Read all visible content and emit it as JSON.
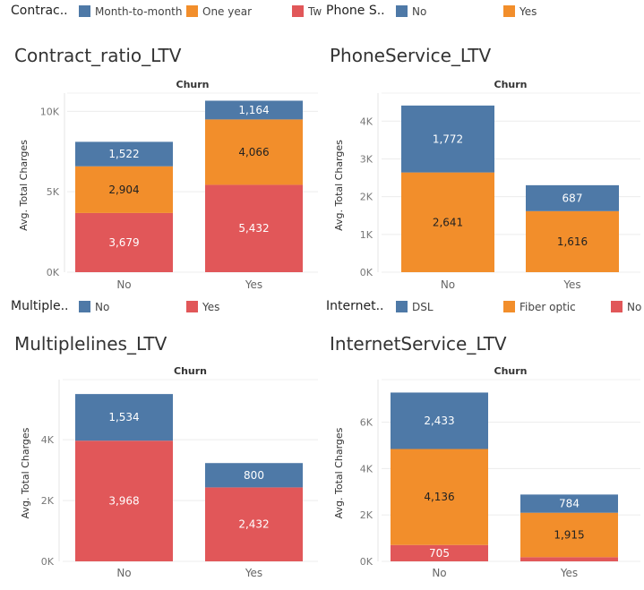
{
  "colors": {
    "blue": "#4e79a7",
    "orange": "#f28e2b",
    "red": "#e15759"
  },
  "panels": [
    {
      "legend": {
        "title": "Contrac..",
        "items": [
          "Month-to-month",
          "One year",
          "Tw"
        ]
      },
      "title": "Contract_ratio_LTV",
      "header": "Churn"
    },
    {
      "legend": {
        "title": "Phone S..",
        "items": [
          "No",
          "Yes"
        ]
      },
      "title": "PhoneService_LTV",
      "header": "Churn"
    },
    {
      "legend": {
        "title": "Multiple..",
        "items": [
          "No",
          "Yes"
        ]
      },
      "title": "Multiplelines_LTV",
      "header": "Churn"
    },
    {
      "legend": {
        "title": "Internet..",
        "items": [
          "DSL",
          "Fiber optic",
          "No"
        ]
      },
      "title": "InternetService_LTV",
      "header": "Churn"
    }
  ],
  "chart_data": [
    {
      "type": "bar",
      "stacked": true,
      "title": "Contract_ratio_LTV",
      "column_header": "Churn",
      "categories": [
        "No",
        "Yes"
      ],
      "ylabel": "Avg. Total Charges",
      "yticks": [
        "0K",
        "5K",
        "10K"
      ],
      "ylim": [
        0,
        10800
      ],
      "series": [
        {
          "name": "Two year",
          "color": "#e15759",
          "values": [
            3679,
            5432
          ],
          "labels": [
            "3,679",
            "5,432"
          ]
        },
        {
          "name": "One year",
          "color": "#f28e2b",
          "values": [
            2904,
            4066
          ],
          "labels": [
            "2,904",
            "4,066"
          ]
        },
        {
          "name": "Month-to-month",
          "color": "#4e79a7",
          "values": [
            1522,
            1164
          ],
          "labels": [
            "1,522",
            "1,164"
          ]
        }
      ]
    },
    {
      "type": "bar",
      "stacked": true,
      "title": "PhoneService_LTV",
      "column_header": "Churn",
      "categories": [
        "No",
        "Yes"
      ],
      "ylabel": "Avg. Total Charges",
      "yticks": [
        "0K",
        "1K",
        "2K",
        "3K",
        "4K"
      ],
      "ylim": [
        0,
        4600
      ],
      "series": [
        {
          "name": "Yes",
          "color": "#f28e2b",
          "values": [
            2641,
            1616
          ],
          "labels": [
            "2,641",
            "1,616"
          ]
        },
        {
          "name": "No",
          "color": "#4e79a7",
          "values": [
            1772,
            687
          ],
          "labels": [
            "1,772",
            "687"
          ]
        }
      ]
    },
    {
      "type": "bar",
      "stacked": true,
      "title": "Multiplelines_LTV",
      "column_header": "Churn",
      "categories": [
        "No",
        "Yes"
      ],
      "ylabel": "Avg. Total Charges",
      "yticks": [
        "0K",
        "2K",
        "4K"
      ],
      "ylim": [
        0,
        5800
      ],
      "series": [
        {
          "name": "Yes",
          "color": "#e15759",
          "values": [
            3968,
            2432
          ],
          "labels": [
            "3,968",
            "2,432"
          ]
        },
        {
          "name": "No",
          "color": "#4e79a7",
          "values": [
            1534,
            800
          ],
          "labels": [
            "1,534",
            "800"
          ]
        }
      ]
    },
    {
      "type": "bar",
      "stacked": true,
      "title": "InternetService_LTV",
      "column_header": "Churn",
      "categories": [
        "No",
        "Yes"
      ],
      "ylabel": "Avg. Total Charges",
      "yticks": [
        "0K",
        "2K",
        "4K",
        "6K"
      ],
      "ylim": [
        0,
        7600
      ],
      "series": [
        {
          "name": "No",
          "color": "#e15759",
          "values": [
            705,
            180
          ],
          "labels": [
            "705",
            ""
          ]
        },
        {
          "name": "Fiber optic",
          "color": "#f28e2b",
          "values": [
            4136,
            1915
          ],
          "labels": [
            "4,136",
            "1,915"
          ]
        },
        {
          "name": "DSL",
          "color": "#4e79a7",
          "values": [
            2433,
            784
          ],
          "labels": [
            "2,433",
            "784"
          ]
        }
      ]
    }
  ]
}
